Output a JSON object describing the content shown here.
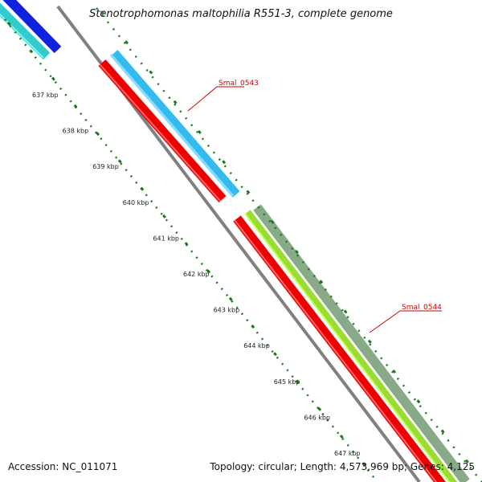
{
  "title": "Stenotrophomonas maltophilia R551-3, complete genome",
  "footer": {
    "accession": "Accession: NC_011071",
    "summary": "Topology: circular; Length: 4,573,969 bp; Genes: 4,125"
  },
  "ruler": {
    "unit": "kbp",
    "ticks": [
      "637 kbp",
      "638 kbp",
      "639 kbp",
      "640 kbp",
      "641 kbp",
      "642 kbp",
      "643 kbp",
      "644 kbp",
      "645 kbp",
      "646 kbp",
      "647 kbp"
    ]
  },
  "genes": [
    {
      "name": "Smal_0543",
      "label_color": "#cc0000"
    },
    {
      "name": "Smal_0544",
      "label_color": "#cc0000"
    }
  ],
  "colors": {
    "backbone": "#808080",
    "reverse_strand_gene": "#ee0000",
    "forward_strand_gene_1": "#33bbee",
    "forward_strand_gene_2": "#99dd33",
    "forward_strand_gene_2_outer": "#88aa88",
    "top_blue": "#1122dd",
    "top_cyan": "#33cccc",
    "ruler_ticks": "#1a7a1a"
  }
}
